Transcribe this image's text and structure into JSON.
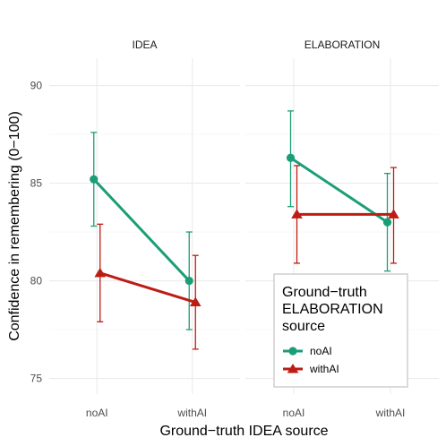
{
  "chart_data": {
    "type": "line",
    "facet_variable": "panel",
    "panels": [
      "IDEA",
      "ELABORATION"
    ],
    "categories": [
      "noAI",
      "withAI"
    ],
    "xlabel": "Ground−truth IDEA source",
    "ylabel": "Confidence in remembering (0−100)",
    "ylim": [
      74.2,
      91.4
    ],
    "y_ticks": [
      75,
      80,
      85,
      90
    ],
    "grid": true,
    "legend": {
      "title": [
        "Ground−truth",
        "ELABORATION",
        "source"
      ],
      "placement": "bottom-right",
      "entries": [
        "noAI",
        "withAI"
      ]
    },
    "series": [
      {
        "name": "noAI",
        "color": "#1b9e77",
        "marker": "circle",
        "panels": {
          "IDEA": {
            "values": [
              85.2,
              80.0
            ],
            "lower": [
              82.8,
              77.5
            ],
            "upper": [
              87.6,
              82.5
            ]
          },
          "ELABORATION": {
            "values": [
              86.3,
              83.0
            ],
            "lower": [
              83.8,
              80.5
            ],
            "upper": [
              88.7,
              85.5
            ]
          }
        }
      },
      {
        "name": "withAI",
        "color": "#bd1c14",
        "marker": "triangle",
        "panels": {
          "IDEA": {
            "values": [
              80.4,
              78.9
            ],
            "lower": [
              77.9,
              76.5
            ],
            "upper": [
              82.9,
              81.3
            ]
          },
          "ELABORATION": {
            "values": [
              83.4,
              83.4
            ],
            "lower": [
              80.9,
              80.9
            ],
            "upper": [
              85.9,
              85.8
            ]
          }
        }
      }
    ]
  }
}
